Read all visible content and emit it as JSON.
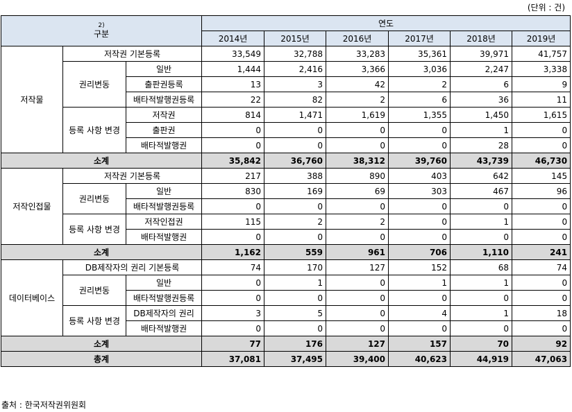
{
  "unit_note": "(단위 : 건)",
  "header": {
    "category_note": "2)",
    "category": "구분",
    "year_label": "연도",
    "years": [
      "2014년",
      "2015년",
      "2016년",
      "2017년",
      "2018년",
      "2019년"
    ]
  },
  "sections": [
    {
      "name": "저작물",
      "basic_label": "저작권 기본등록",
      "basic": [
        "33,549",
        "32,788",
        "33,283",
        "35,361",
        "39,971",
        "41,757"
      ],
      "change_label": "권리변동",
      "change_rows": [
        {
          "label": "일반",
          "values": [
            "1,444",
            "2,416",
            "3,366",
            "3,036",
            "2,247",
            "3,338"
          ]
        },
        {
          "label": "출판권등록",
          "values": [
            "13",
            "3",
            "42",
            "2",
            "6",
            "9"
          ]
        },
        {
          "label": "배타적발행권등록",
          "values": [
            "22",
            "82",
            "2",
            "6",
            "36",
            "11"
          ]
        }
      ],
      "reg_label": "등록 사항 변경",
      "reg_rows": [
        {
          "label": "저작권",
          "values": [
            "814",
            "1,471",
            "1,619",
            "1,355",
            "1,450",
            "1,615"
          ]
        },
        {
          "label": "출판권",
          "values": [
            "0",
            "0",
            "0",
            "0",
            "1",
            "0"
          ]
        },
        {
          "label": "배타적발행권",
          "values": [
            "0",
            "0",
            "0",
            "0",
            "28",
            "0"
          ]
        }
      ],
      "subtotal_label": "소계",
      "subtotal": [
        "35,842",
        "36,760",
        "38,312",
        "39,760",
        "43,739",
        "46,730"
      ]
    },
    {
      "name": "저작인접물",
      "basic_label": "저작권 기본등록",
      "basic": [
        "217",
        "388",
        "890",
        "403",
        "642",
        "145"
      ],
      "change_label": "권리변동",
      "change_rows": [
        {
          "label": "일반",
          "values": [
            "830",
            "169",
            "69",
            "303",
            "467",
            "96"
          ]
        },
        {
          "label": "배타적발행권등록",
          "values": [
            "0",
            "0",
            "0",
            "0",
            "0",
            "0"
          ]
        }
      ],
      "reg_label": "등록 사항 변경",
      "reg_rows": [
        {
          "label": "저작인접권",
          "values": [
            "115",
            "2",
            "2",
            "0",
            "1",
            "0"
          ]
        },
        {
          "label": "배타적발행권",
          "values": [
            "0",
            "0",
            "0",
            "0",
            "0",
            "0"
          ]
        }
      ],
      "subtotal_label": "소계",
      "subtotal": [
        "1,162",
        "559",
        "961",
        "706",
        "1,110",
        "241"
      ]
    },
    {
      "name": "데이터베이스",
      "basic_label": "DB제작자의 권리 기본등록",
      "basic": [
        "74",
        "170",
        "127",
        "152",
        "68",
        "74"
      ],
      "change_label": "권리변동",
      "change_rows": [
        {
          "label": "일반",
          "values": [
            "0",
            "1",
            "0",
            "1",
            "1",
            "0"
          ]
        },
        {
          "label": "배타적발행권등록",
          "values": [
            "0",
            "0",
            "0",
            "0",
            "0",
            "0"
          ]
        }
      ],
      "reg_label": "등록 사항 변경",
      "reg_rows": [
        {
          "label": "DB제작자의 권리",
          "values": [
            "3",
            "5",
            "0",
            "4",
            "1",
            "18"
          ]
        },
        {
          "label": "배타적발행권",
          "values": [
            "0",
            "0",
            "0",
            "0",
            "0",
            "0"
          ]
        }
      ],
      "subtotal_label": "소계",
      "subtotal": [
        "77",
        "176",
        "127",
        "157",
        "70",
        "92"
      ]
    }
  ],
  "total_label": "총계",
  "total": [
    "37,081",
    "37,495",
    "39,400",
    "40,623",
    "44,919",
    "47,063"
  ],
  "source": "출처 : 한국저작권위원회"
}
